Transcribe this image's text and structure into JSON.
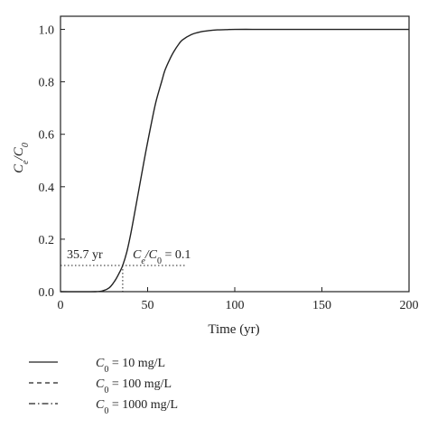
{
  "chart_data": {
    "type": "line",
    "xlabel": "Time (yr)",
    "ylabel_main": "C",
    "ylabel_sub1": "e",
    "ylabel_sep": "/",
    "ylabel_sub2": "0",
    "xlim": [
      0,
      200
    ],
    "ylim": [
      0,
      1.05
    ],
    "xticks": [
      0,
      50,
      100,
      150,
      200
    ],
    "xtick_labels": [
      "0",
      "50",
      "100",
      "150",
      "200"
    ],
    "yticks": [
      0,
      0.2,
      0.4,
      0.6,
      0.8,
      1.0
    ],
    "ytick_labels": [
      "0.0",
      "0.2",
      "0.4",
      "0.6",
      "0.8",
      "1.0"
    ],
    "grid": false,
    "series": [
      {
        "name_main": "C",
        "name_sub": "0",
        "name_rest": " = 10 mg/L",
        "style": "solid",
        "x": [
          0,
          20,
          25,
          28,
          30,
          32,
          34,
          35.7,
          38,
          40,
          42,
          45,
          48,
          50,
          53,
          55,
          58,
          60,
          63,
          65,
          68,
          70,
          75,
          80,
          85,
          90,
          95,
          100,
          110,
          120,
          150,
          200
        ],
        "y": [
          0,
          0,
          0.005,
          0.015,
          0.03,
          0.05,
          0.075,
          0.1,
          0.15,
          0.21,
          0.28,
          0.39,
          0.5,
          0.57,
          0.67,
          0.73,
          0.8,
          0.845,
          0.89,
          0.915,
          0.945,
          0.96,
          0.98,
          0.99,
          0.995,
          0.998,
          0.999,
          1.0,
          1.0,
          1.0,
          1.0,
          1.0
        ]
      },
      {
        "name_main": "C",
        "name_sub": "0",
        "name_rest": " = 100 mg/L",
        "style": "dashed",
        "x": [],
        "y": []
      },
      {
        "name_main": "C",
        "name_sub": "0",
        "name_rest": " = 1000 mg/L",
        "style": "dashdot",
        "x": [],
        "y": []
      }
    ],
    "annotations": {
      "time_label": "35.7 yr",
      "ratio_main": "C",
      "ratio_sub1": "e",
      "ratio_sep": "/C",
      "ratio_sub2": "0",
      "ratio_rest": " = 0.1",
      "x_value": 35.7,
      "y_value": 0.1,
      "hline_x_end": 72
    }
  }
}
